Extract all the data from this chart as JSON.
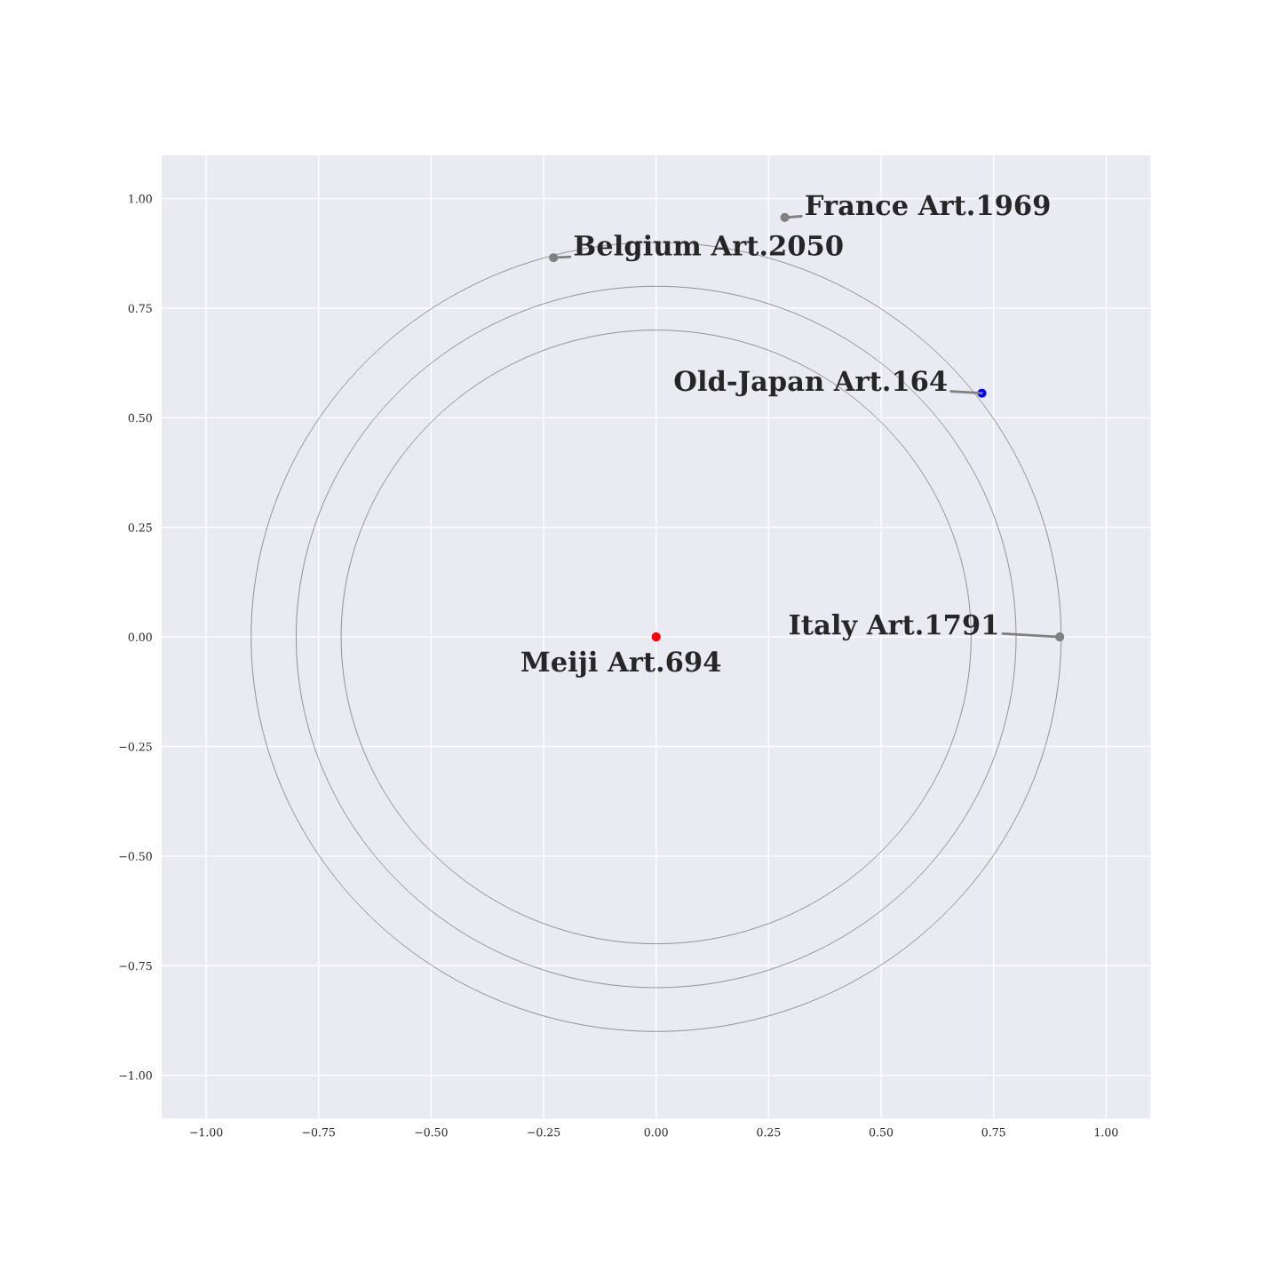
{
  "chart_data": {
    "type": "scatter",
    "xlim": [
      -1.1,
      1.1
    ],
    "ylim": [
      -1.1,
      1.1
    ],
    "xticks": [
      {
        "value": -1,
        "label": "−1.00"
      },
      {
        "value": -0.75,
        "label": "−0.75"
      },
      {
        "value": -0.5,
        "label": "−0.50"
      },
      {
        "value": -0.25,
        "label": "−0.25"
      },
      {
        "value": 0,
        "label": "0.00"
      },
      {
        "value": 0.25,
        "label": "0.25"
      },
      {
        "value": 0.5,
        "label": "0.50"
      },
      {
        "value": 0.75,
        "label": "0.75"
      },
      {
        "value": 1,
        "label": "1.00"
      }
    ],
    "yticks": [
      {
        "value": -1,
        "label": "−1.00"
      },
      {
        "value": -0.75,
        "label": "−0.75"
      },
      {
        "value": -0.5,
        "label": "−0.50"
      },
      {
        "value": -0.25,
        "label": "−0.25"
      },
      {
        "value": 0,
        "label": "0.00"
      },
      {
        "value": 0.25,
        "label": "0.25"
      },
      {
        "value": 0.5,
        "label": "0.50"
      },
      {
        "value": 0.75,
        "label": "0.75"
      },
      {
        "value": 1,
        "label": "1.00"
      }
    ],
    "grid": true,
    "marker": "circle",
    "series": [
      {
        "x": [
          0,
          0.724,
          0.897,
          0.286,
          -0.228
        ],
        "values": [
          0,
          0.556,
          0,
          0.957,
          0.865
        ],
        "colors": [
          "#ff0000",
          "#0000ff",
          "#808080",
          "#808080",
          "#808080"
        ]
      }
    ],
    "annotations": [
      {
        "text": "Meiji Art.694",
        "x": 0,
        "y": 0
      },
      {
        "text": "Old-Japan Art.164",
        "x": 0.724,
        "y": 0.556
      },
      {
        "text": "Italy Art.1791",
        "x": 0.897,
        "y": 0
      },
      {
        "text": "France Art.1969",
        "x": 0.286,
        "y": 0.957
      },
      {
        "text": "Belgium Art.2050",
        "x": -0.228,
        "y": 0.865
      }
    ]
  }
}
